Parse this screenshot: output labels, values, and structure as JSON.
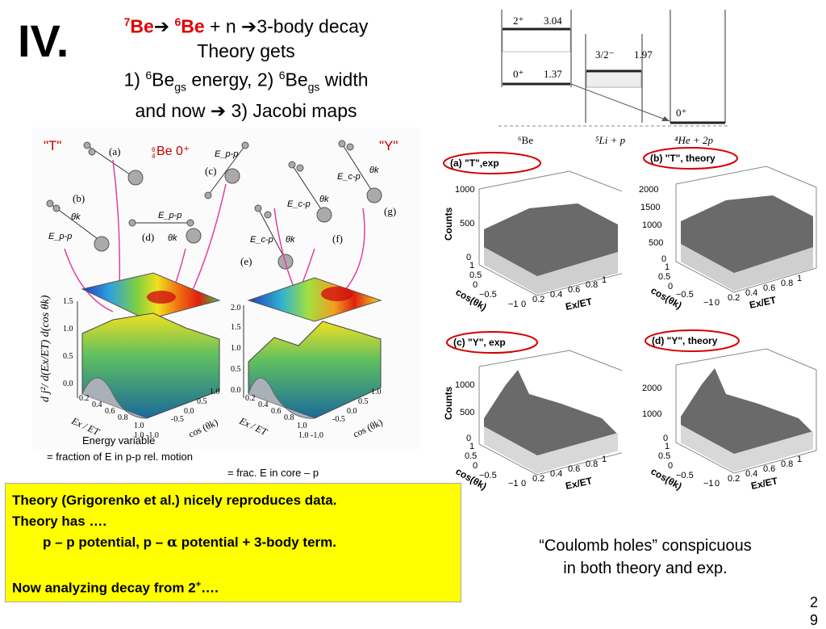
{
  "slide": {
    "number": "IV.",
    "title_lines": {
      "line1_be7_sup": "7",
      "line1_be7": "Be",
      "line1_arrow": "➔",
      "line1_be6_sup": "6",
      "line1_be6": "Be",
      "line1_rest": " + n ➔3-body decay",
      "line2": "Theory gets",
      "line3_a": "1) ",
      "line3_sup1": "6",
      "line3_be1": "Be",
      "line3_sub1": "gs",
      "line3_b": " energy, 2) ",
      "line3_sup2": "6",
      "line3_be2": "Be",
      "line3_sub2": "gs",
      "line3_c": " width",
      "line4": "and now ➔ 3) Jacobi maps"
    },
    "left_figure": {
      "label_T": "\"T\"",
      "label_Y": "\"Y\"",
      "nucleus": "Be 0⁺",
      "nucleus_sup": "6",
      "nucleus_sub": "4",
      "diagram_labels": [
        "(a)",
        "(b)",
        "(c)",
        "(d)",
        "(e)",
        "(f)",
        "(g)"
      ],
      "energy_labels": [
        "E_p-p",
        "E_p-p",
        "E_p-p",
        "E_c-p",
        "E_c-p",
        "E_c-p"
      ],
      "theta_label": "θk",
      "zaxis_label": "d j²/ d(Ex/ET) d(cos θk)",
      "left_z_ticks": [
        "1.5",
        "1.0",
        "0.5",
        "0.0"
      ],
      "right_z_ticks": [
        "2.0",
        "1.5",
        "1.0",
        "0.5",
        "0.0"
      ],
      "x_ticks": [
        "0.2",
        "0.4",
        "0.6",
        "0.8",
        "1.0"
      ],
      "cos_ticks": [
        "1.0",
        "0.5",
        "0.0",
        "-0.5",
        "1.0 -1.0"
      ],
      "x_axis_label": "Ex / ET",
      "cos_axis_label": "cos (θk)"
    },
    "annotations": {
      "energy_variable": "Energy variable",
      "equals1": "=   fraction of E in p-p rel. motion",
      "equals2": "= frac. E in core – p"
    },
    "level_scheme": {
      "be6_2plus": "2⁺",
      "be6_2plus_energy": "3.04",
      "be6_0plus": "0⁺",
      "be6_0plus_energy": "1.37",
      "li5_state": "3/2⁻",
      "li5_energy": "1.97",
      "he4_state": "0⁺",
      "label_be6": "⁶Be",
      "label_li5": "⁵Li + p",
      "label_he4": "⁴He + 2p"
    },
    "histograms": [
      {
        "title": "(a) \"T\",exp",
        "ylabel": "Counts",
        "zticks": [
          "1000",
          "500",
          "0"
        ]
      },
      {
        "title": "(b) \"T\", theory",
        "ylabel": "",
        "zticks": [
          "2000",
          "1500",
          "1000",
          "500",
          "0"
        ]
      },
      {
        "title": "(c) \"Y\", exp",
        "ylabel": "Counts",
        "zticks": [
          "1000",
          "500",
          "0"
        ]
      },
      {
        "title": "(d) \"Y\", theory",
        "ylabel": "",
        "zticks": [
          "2000",
          "1000",
          "0"
        ]
      }
    ],
    "histogram_axes": {
      "cos_ticks": [
        "1",
        "0.5",
        "0",
        "−0.5",
        "−1"
      ],
      "ex_ticks": [
        "0",
        "0.2",
        "0.4",
        "0.6",
        "0.8",
        "1"
      ],
      "cos_label": "cos(θk)",
      "ex_label": "Ex/ET"
    },
    "yellow_box": {
      "line1": "Theory (Grigorenko et al.) nicely reproduces data.",
      "line2": "Theory has ….",
      "line3_a": "p – p potential, p – ",
      "line3_alpha": "α",
      "line3_b": " potential + 3-body term.",
      "line4_a": "Now analyzing decay from 2",
      "line4_sup": "+",
      "line4_b": "…."
    },
    "coulomb_note": {
      "line1": "“Coulomb holes” conspicuous",
      "line2": "in both theory and exp."
    },
    "page_number": {
      "line1": "2",
      "line2": "9"
    },
    "colors": {
      "accent_red": "#e00000",
      "note_yellow": "#ffff00",
      "highlight_ellipse": "#d40000"
    }
  }
}
